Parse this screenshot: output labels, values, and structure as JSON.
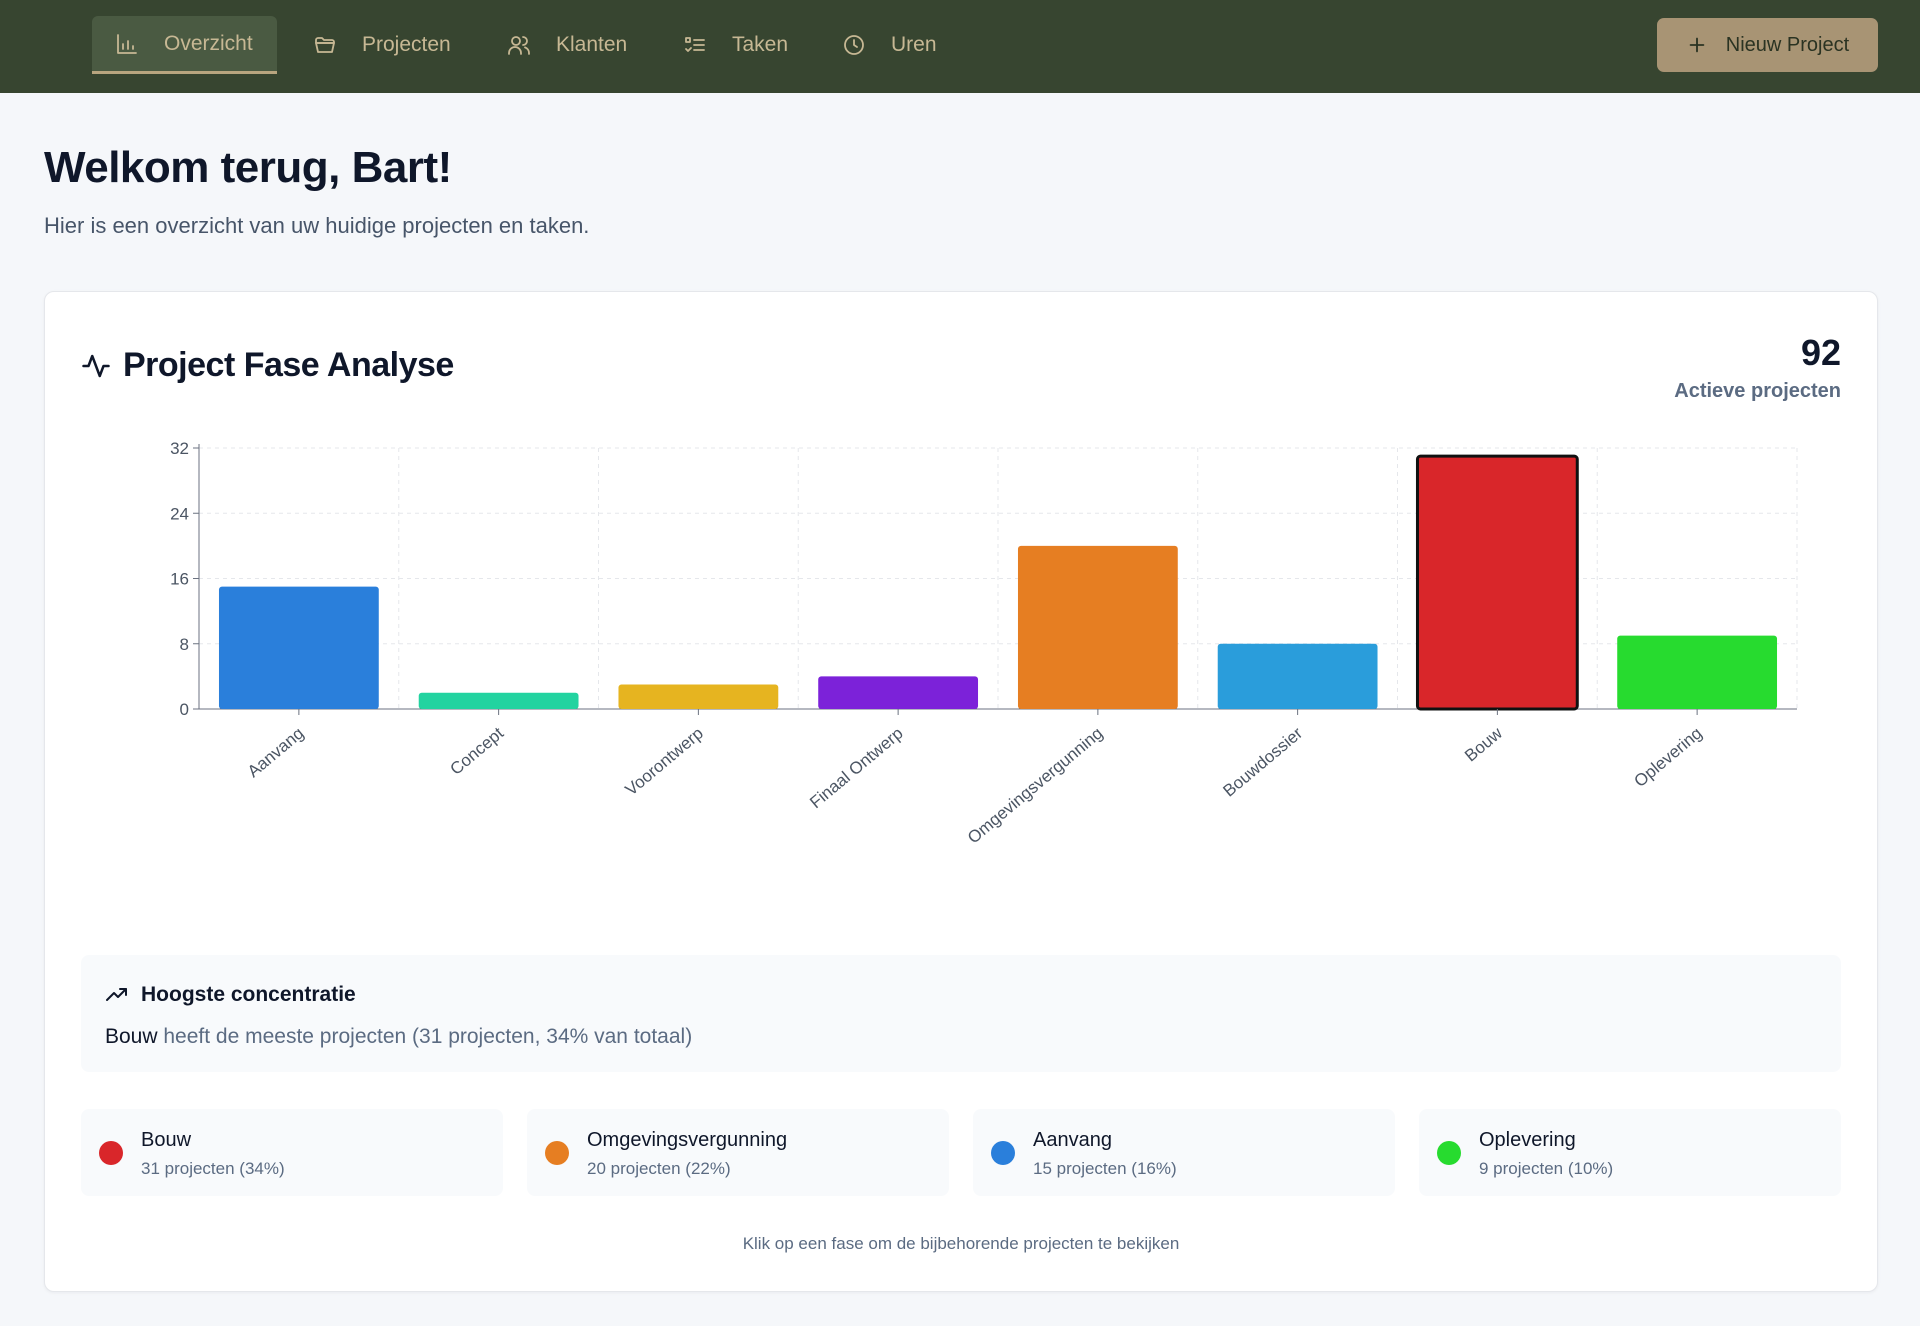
{
  "nav": {
    "items": [
      {
        "label": "Overzicht",
        "icon": "bar-chart-icon"
      },
      {
        "label": "Projecten",
        "icon": "folder-icon"
      },
      {
        "label": "Klanten",
        "icon": "users-icon"
      },
      {
        "label": "Taken",
        "icon": "list-checks-icon"
      },
      {
        "label": "Uren",
        "icon": "clock-icon"
      }
    ],
    "new_project_label": "Nieuw Project"
  },
  "page": {
    "title": "Welkom terug, Bart!",
    "subtitle": "Hier is een overzicht van uw huidige projecten en taken."
  },
  "card": {
    "title": "Project Fase Analyse",
    "stat_value": "92",
    "stat_label": "Actieve projecten"
  },
  "chart_data": {
    "type": "bar",
    "categories": [
      "Aanvang",
      "Concept",
      "Voorontwerp",
      "Finaal Ontwerp",
      "Omgevingsvergunning",
      "Bouwdossier",
      "Bouw",
      "Oplevering"
    ],
    "values": [
      15,
      2,
      3,
      4,
      20,
      8,
      31,
      9
    ],
    "colors": [
      "#2a7fdb",
      "#22d3a0",
      "#e6b420",
      "#7c22d9",
      "#e67e22",
      "#2a9ddb",
      "#d9262a",
      "#27db2f"
    ],
    "highlighted": "Bouw",
    "ylim": [
      0,
      32
    ],
    "yticks": [
      0,
      8,
      16,
      24,
      32
    ],
    "grid": true
  },
  "insight": {
    "heading": "Hoogste concentratie",
    "phase": "Bouw",
    "text": " heeft de meeste projecten (31 projecten, 34% van totaal)"
  },
  "legend": [
    {
      "name": "Bouw",
      "count": "31 projecten (34%)",
      "color": "#d9262a"
    },
    {
      "name": "Omgevingsvergunning",
      "count": "20 projecten (22%)",
      "color": "#e67e22"
    },
    {
      "name": "Aanvang",
      "count": "15 projecten (16%)",
      "color": "#2a7fdb"
    },
    {
      "name": "Oplevering",
      "count": "9 projecten (10%)",
      "color": "#27db2f"
    }
  ],
  "footnote": "Klik op een fase om de bijbehorende projecten te bekijken"
}
